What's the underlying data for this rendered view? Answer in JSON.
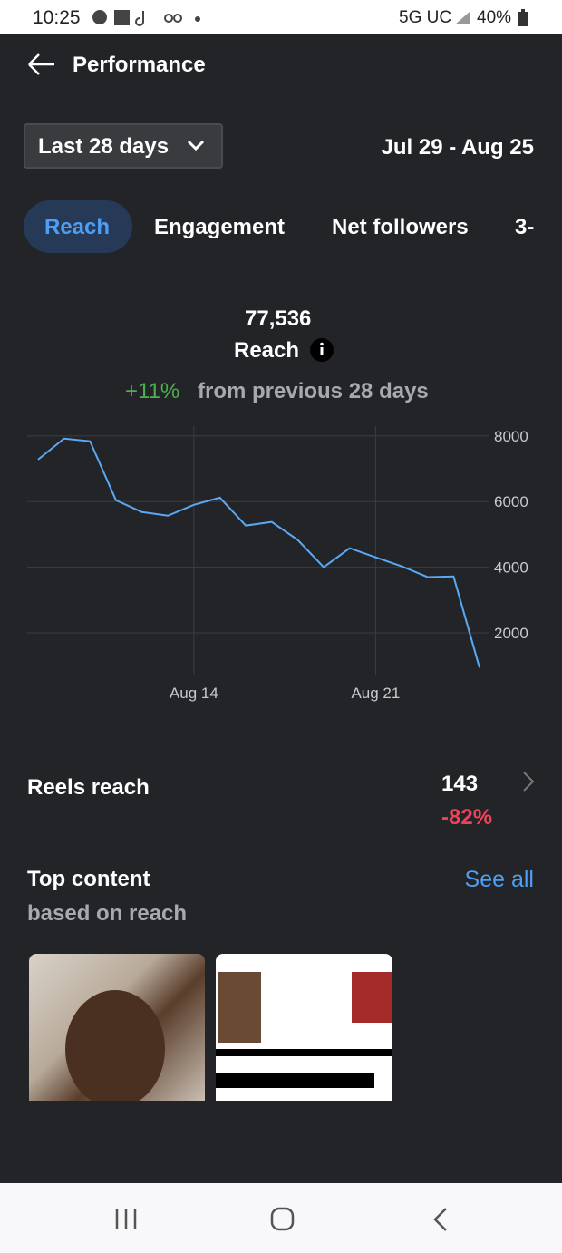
{
  "status_bar": {
    "time": "10:25",
    "network": "5G UC",
    "battery": "40%"
  },
  "header": {
    "title": "Performance"
  },
  "filter": {
    "range": "Last 28 days",
    "dates": "Jul 29 - Aug 25"
  },
  "tabs": [
    "Reach",
    "Engagement",
    "Net followers",
    "3-"
  ],
  "summary": {
    "value": "77,536",
    "label": "Reach",
    "change": "+11%",
    "change_text": "from previous 28 days"
  },
  "chart_data": {
    "type": "line",
    "categories": [
      null,
      null,
      null,
      null,
      null,
      null,
      "Aug 14",
      null,
      null,
      null,
      null,
      null,
      null,
      "Aug 21",
      null,
      null,
      null,
      null
    ],
    "series": [
      {
        "name": "Reach",
        "color": "#5aa9f5",
        "values": [
          7280,
          7920,
          7840,
          6040,
          5680,
          5570,
          5900,
          6120,
          5270,
          5380,
          4830,
          4000,
          4580,
          4300,
          4030,
          3700,
          3720,
          940
        ]
      }
    ],
    "ylim": [
      700,
      8300
    ],
    "yticks": [
      2000,
      4000,
      6000,
      8000
    ],
    "grid": true
  },
  "reels": {
    "label": "Reels reach",
    "value": "143",
    "change": "-82%"
  },
  "top_content": {
    "title": "Top content",
    "subtitle": "based on reach",
    "link": "See all"
  }
}
